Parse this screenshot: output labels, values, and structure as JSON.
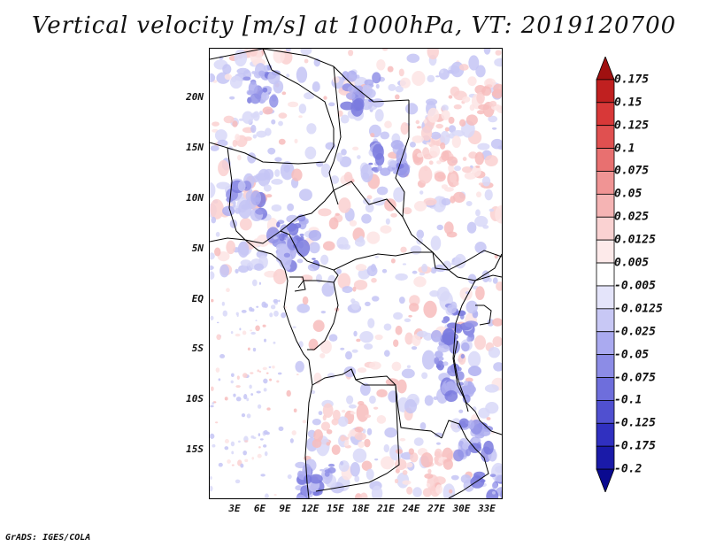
{
  "title": "Vertical velocity [m/s] at 1000hPa, VT: 2019120700",
  "footer": "GrADS: IGES/COLA",
  "map": {
    "lat_labels": [
      "20N",
      "15N",
      "10N",
      "5N",
      "EQ",
      "5S",
      "10S",
      "15S"
    ],
    "lon_labels": [
      "3E",
      "6E",
      "9E",
      "12E",
      "15E",
      "18E",
      "21E",
      "24E",
      "27E",
      "30E",
      "33E"
    ]
  },
  "colorbar": {
    "labels": [
      "0.175",
      "0.15",
      "0.125",
      "0.1",
      "0.075",
      "0.05",
      "0.025",
      "0.0125",
      "0.005",
      "-0.005",
      "-0.0125",
      "-0.025",
      "-0.05",
      "-0.075",
      "-0.1",
      "-0.125",
      "-0.175",
      "-0.2"
    ],
    "colors": [
      "#a01010",
      "#c02020",
      "#d83838",
      "#e05050",
      "#e87070",
      "#f09494",
      "#f5b4b4",
      "#fad2d2",
      "#fdeaea",
      "#ffffff",
      "#e4e4fa",
      "#c8c8f5",
      "#aaaaf0",
      "#8c8ce6",
      "#6e6edc",
      "#5050d0",
      "#3030c0",
      "#1a1aa8",
      "#0a0a90"
    ]
  }
}
